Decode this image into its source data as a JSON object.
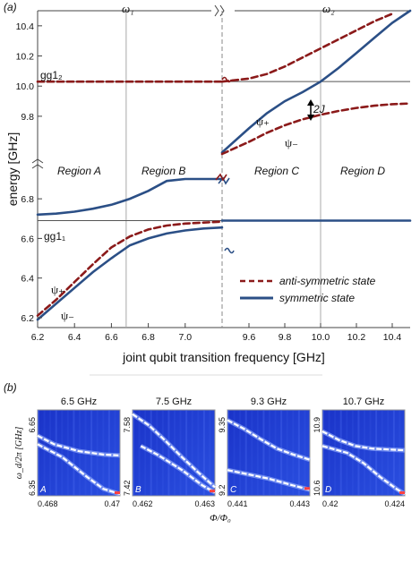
{
  "figure": {
    "panel_a_label": "(a)",
    "panel_b_label": "(b)"
  },
  "panel_a": {
    "ylabel": "energy [GHz]",
    "xlabel": "joint qubit transition frequency [GHz]",
    "omega1_label": "ω₁",
    "omega2_label": "ω₂",
    "gg12_label": "gg1₂",
    "gg11_label": "gg1₁",
    "twoJ_label": "2J",
    "psi_plus_label": "ψ₊",
    "psi_minus_label": "ψ₋",
    "regions": [
      "Region A",
      "Region B",
      "Region C",
      "Region D"
    ],
    "legend": {
      "anti_symmetric": "anti-symmetric state",
      "symmetric": "symmetric state"
    },
    "colors": {
      "symmetric": "#2b4f86",
      "anti_symmetric": "#8b1a1a",
      "reference": "#666666"
    }
  },
  "panel_b": {
    "ylabel": "ω_d/2π [GHz]",
    "xlabel": "Φ/Φ₀",
    "panels": [
      {
        "title": "6.5 GHz",
        "letter": "A",
        "y_top": "6.65",
        "y_bottom": "6.35",
        "x_left": "0.468",
        "x_right": "0.47"
      },
      {
        "title": "7.5 GHz",
        "letter": "B",
        "y_top": "7.58",
        "y_bottom": "7.42",
        "x_left": "0.462",
        "x_right": "0.463"
      },
      {
        "title": "9.3 GHz",
        "letter": "C",
        "y_top": "9.35",
        "y_bottom": "9.2",
        "x_left": "0.441",
        "x_right": "0.443"
      },
      {
        "title": "10.7 GHz",
        "letter": "D",
        "y_top": "10.9",
        "y_bottom": "10.6",
        "x_left": "0.42",
        "x_right": "0.424"
      }
    ]
  },
  "chart_data": [
    {
      "type": "line",
      "x_ticks_left": [
        "6.2",
        "6.4",
        "6.6",
        "6.8",
        "7.0"
      ],
      "x_ticks_right": [
        "9.6",
        "9.8",
        "10.0",
        "10.2",
        "10.4"
      ],
      "y_ticks_top": [
        "10.4",
        "10.2",
        "10.0",
        "9.8"
      ],
      "y_ticks_bottom": [
        "6.8",
        "6.6",
        "6.4",
        "6.2"
      ],
      "xlim_left": [
        6.2,
        7.2
      ],
      "xlim_right": [
        9.45,
        10.5
      ],
      "ylim_top": [
        9.55,
        10.5
      ],
      "ylim_bottom": [
        6.15,
        6.9
      ],
      "reference_levels": {
        "gg1_1": 6.69,
        "gg1_2": 10.03
      },
      "omega1": 6.68,
      "omega2": 10.0,
      "series": [
        {
          "name": "anti-symmetric state",
          "style": "dashed",
          "left": [
            [
              6.2,
              6.21
            ],
            [
              6.3,
              6.29
            ],
            [
              6.4,
              6.38
            ],
            [
              6.5,
              6.47
            ],
            [
              6.6,
              6.555
            ],
            [
              6.7,
              6.61
            ],
            [
              6.8,
              6.645
            ],
            [
              6.9,
              6.665
            ],
            [
              7.0,
              6.675
            ],
            [
              7.1,
              6.68
            ],
            [
              7.2,
              6.685
            ]
          ],
          "right": [
            [
              9.45,
              10.03
            ],
            [
              9.6,
              10.05
            ],
            [
              9.7,
              10.08
            ],
            [
              9.8,
              10.13
            ],
            [
              9.9,
              10.19
            ],
            [
              10.0,
              10.25
            ],
            [
              10.1,
              10.31
            ],
            [
              10.2,
              10.37
            ],
            [
              10.3,
              10.43
            ],
            [
              10.4,
              10.48
            ]
          ]
        },
        {
          "name": "symmetric state",
          "style": "solid",
          "left": [
            [
              6.2,
              6.72
            ],
            [
              6.3,
              6.725
            ],
            [
              6.4,
              6.735
            ],
            [
              6.5,
              6.75
            ],
            [
              6.6,
              6.77
            ],
            [
              6.7,
              6.8
            ],
            [
              6.8,
              6.84
            ],
            [
              6.9,
              6.89
            ],
            [
              7.0,
              6.94
            ],
            [
              7.1,
              7.0
            ],
            [
              7.2,
              7.06
            ]
          ],
          "right": [
            [
              9.45,
              9.56
            ],
            [
              9.6,
              9.72
            ],
            [
              9.7,
              9.82
            ],
            [
              9.8,
              9.9
            ],
            [
              9.9,
              9.96
            ],
            [
              10.0,
              10.03
            ],
            [
              10.1,
              10.12
            ],
            [
              10.2,
              10.22
            ],
            [
              10.3,
              10.32
            ],
            [
              10.4,
              10.42
            ],
            [
              10.5,
              10.52
            ]
          ]
        },
        {
          "name": "anti-symmetric state",
          "style": "dashed",
          "segment": "lower-right",
          "right": [
            [
              9.45,
              9.55
            ],
            [
              9.6,
              9.63
            ],
            [
              9.7,
              9.69
            ],
            [
              9.8,
              9.74
            ],
            [
              9.9,
              9.78
            ],
            [
              10.0,
              9.81
            ],
            [
              10.1,
              9.835
            ],
            [
              10.2,
              9.855
            ],
            [
              10.3,
              9.87
            ],
            [
              10.4,
              9.88
            ],
            [
              10.5,
              9.885
            ]
          ]
        },
        {
          "name": "symmetric state",
          "style": "solid",
          "segment": "lower-left",
          "left": [
            [
              6.2,
              6.19
            ],
            [
              6.3,
              6.27
            ],
            [
              6.4,
              6.35
            ],
            [
              6.5,
              6.43
            ],
            [
              6.6,
              6.5
            ],
            [
              6.7,
              6.565
            ],
            [
              6.8,
              6.6
            ],
            [
              6.9,
              6.625
            ],
            [
              7.0,
              6.64
            ],
            [
              7.1,
              6.65
            ],
            [
              7.2,
              6.655
            ]
          ],
          "right_flat": 6.69
        }
      ]
    }
  ]
}
